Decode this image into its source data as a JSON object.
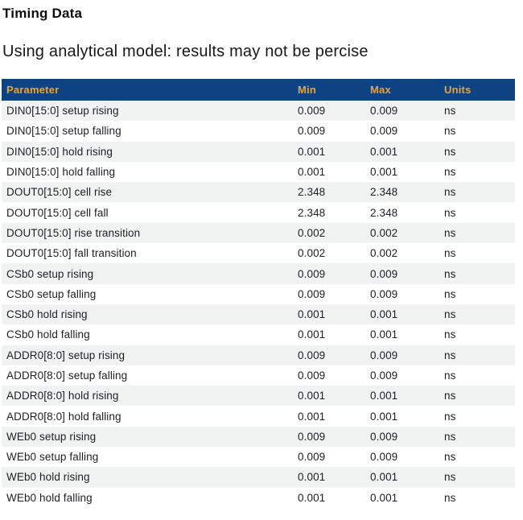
{
  "page": {
    "title": "Timing Data",
    "subtitle": "Using analytical model: results may not be percise"
  },
  "table": {
    "columns": [
      "Parameter",
      "Min",
      "Max",
      "Units"
    ],
    "rows": [
      {
        "parameter": "DIN0[15:0] setup rising",
        "min": "0.009",
        "max": "0.009",
        "units": "ns"
      },
      {
        "parameter": "DIN0[15:0] setup falling",
        "min": "0.009",
        "max": "0.009",
        "units": "ns"
      },
      {
        "parameter": "DIN0[15:0] hold rising",
        "min": "0.001",
        "max": "0.001",
        "units": "ns"
      },
      {
        "parameter": "DIN0[15:0] hold falling",
        "min": "0.001",
        "max": "0.001",
        "units": "ns"
      },
      {
        "parameter": "DOUT0[15:0] cell rise",
        "min": "2.348",
        "max": "2.348",
        "units": "ns"
      },
      {
        "parameter": "DOUT0[15:0] cell fall",
        "min": "2.348",
        "max": "2.348",
        "units": "ns"
      },
      {
        "parameter": "DOUT0[15:0] rise transition",
        "min": "0.002",
        "max": "0.002",
        "units": "ns"
      },
      {
        "parameter": "DOUT0[15:0] fall transition",
        "min": "0.002",
        "max": "0.002",
        "units": "ns"
      },
      {
        "parameter": "CSb0 setup rising",
        "min": "0.009",
        "max": "0.009",
        "units": "ns"
      },
      {
        "parameter": "CSb0 setup falling",
        "min": "0.009",
        "max": "0.009",
        "units": "ns"
      },
      {
        "parameter": "CSb0 hold rising",
        "min": "0.001",
        "max": "0.001",
        "units": "ns"
      },
      {
        "parameter": "CSb0 hold falling",
        "min": "0.001",
        "max": "0.001",
        "units": "ns"
      },
      {
        "parameter": "ADDR0[8:0] setup rising",
        "min": "0.009",
        "max": "0.009",
        "units": "ns"
      },
      {
        "parameter": "ADDR0[8:0] setup falling",
        "min": "0.009",
        "max": "0.009",
        "units": "ns"
      },
      {
        "parameter": "ADDR0[8:0] hold rising",
        "min": "0.001",
        "max": "0.001",
        "units": "ns"
      },
      {
        "parameter": "ADDR0[8:0] hold falling",
        "min": "0.001",
        "max": "0.001",
        "units": "ns"
      },
      {
        "parameter": "WEb0 setup rising",
        "min": "0.009",
        "max": "0.009",
        "units": "ns"
      },
      {
        "parameter": "WEb0 setup falling",
        "min": "0.009",
        "max": "0.009",
        "units": "ns"
      },
      {
        "parameter": "WEb0 hold rising",
        "min": "0.001",
        "max": "0.001",
        "units": "ns"
      },
      {
        "parameter": "WEb0 hold falling",
        "min": "0.001",
        "max": "0.001",
        "units": "ns"
      }
    ]
  },
  "colors": {
    "header_bg": "#0d4383",
    "header_text": "#f0a22d",
    "stripe": "#f1f2f2",
    "row_text": "#1e1e26",
    "title_color": "#0e0e10",
    "subtitle_color": "#17171c"
  }
}
